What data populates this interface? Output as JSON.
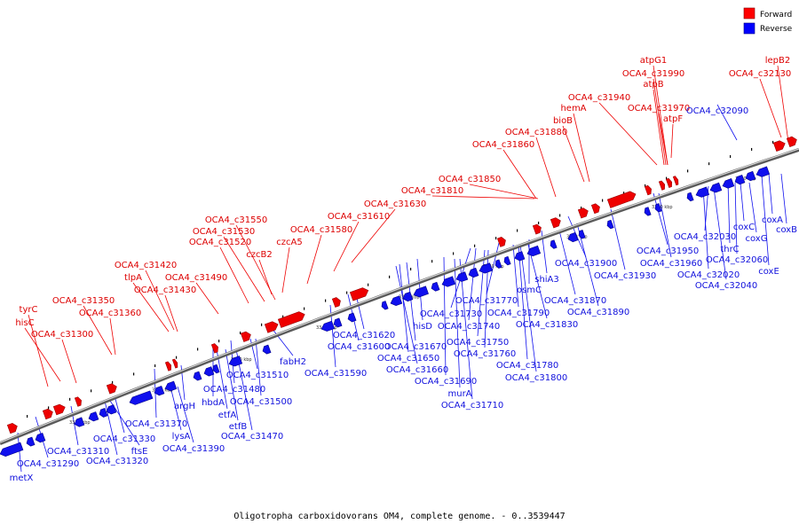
{
  "legend": {
    "forward": {
      "label": "Forward",
      "color": "#ff0000"
    },
    "reverse": {
      "label": "Reverse",
      "color": "#0000ff"
    }
  },
  "caption": "Oligotropha carboxidovorans OM4, complete genome. - 0..3539447",
  "ticks": [
    "3310 kbp",
    "3320 kbp",
    "3330 kbp",
    "3340 kbp",
    "3350 kbp",
    "3360 kbp",
    "3370 kbp",
    "3380 kbp",
    "3390 kbp"
  ],
  "forward_labels": [
    "lepB2",
    "OCA4_c32130",
    "atpG1",
    "OCA4_c31990",
    "atpB",
    "OCA4_c31940",
    "OCA4_c31970",
    "hemA",
    "atpF",
    "bioB",
    "OCA4_c31880",
    "OCA4_c31860",
    "OCA4_c31850",
    "OCA4_c31810",
    "OCA4_c31630",
    "OCA4_c31610",
    "OCA4_c31550",
    "OCA4_c31580",
    "OCA4_c31530",
    "OCA4_c31520",
    "czcA5",
    "czcB2",
    "OCA4_c31420",
    "tlpA",
    "OCA4_c31490",
    "OCA4_c31430",
    "OCA4_c31350",
    "tyrC",
    "OCA4_c31360",
    "hisC",
    "OCA4_c31300"
  ],
  "reverse_labels": [
    "OCA4_c32090",
    "coxA",
    "coxB",
    "coxC",
    "coxG",
    "thrC",
    "OCA4_c32030",
    "OCA4_c32060",
    "OCA4_c31950",
    "coxE",
    "OCA4_c32020",
    "OCA4_c31960",
    "OCA4_c32040",
    "OCA4_c31900",
    "OCA4_c31930",
    "shiA3",
    "OCA4_c31870",
    "osmC",
    "OCA4_c31890",
    "OCA4_c31770",
    "OCA4_c31790",
    "OCA4_c31730",
    "OCA4_c31830",
    "OCA4_c31740",
    "hisD",
    "OCA4_c31750",
    "OCA4_c31670",
    "OCA4_c31760",
    "OCA4_c31650",
    "OCA4_c31780",
    "OCA4_c31660",
    "OCA4_c31800",
    "OCA4_c31690",
    "murA",
    "OCA4_c31710",
    "OCA4_c31620",
    "OCA4_c31600",
    "fabH2",
    "OCA4_c31590",
    "OCA4_c31510",
    "OCA4_c31480",
    "hbdA",
    "OCA4_c31500",
    "argH",
    "etfA",
    "etfB",
    "OCA4_c31470",
    "OCA4_c31370",
    "lysA",
    "OCA4_c31390",
    "OCA4_c31330",
    "ftsE",
    "OCA4_c31310",
    "OCA4_c31320",
    "OCA4_c31290",
    "metX"
  ]
}
